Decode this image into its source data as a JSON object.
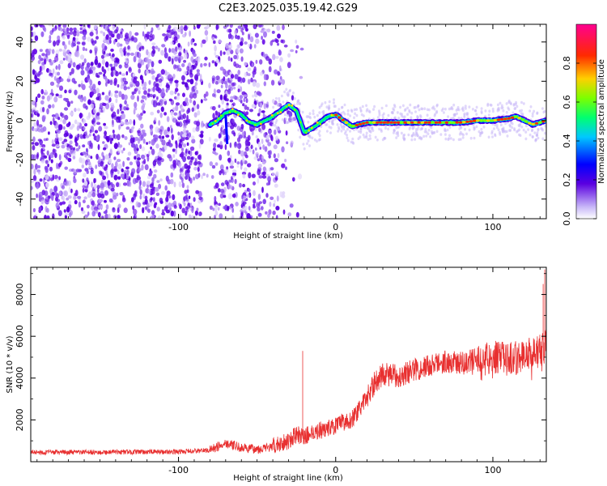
{
  "title": "C2E3.2025.035.19.42.G29",
  "chart_data": [
    {
      "type": "heatmap",
      "xlabel": "Height of straight line (km)",
      "ylabel": "Frequency (Hz)",
      "xlim": [
        -194,
        134
      ],
      "ylim": [
        -50,
        49
      ],
      "xticks": [
        -100,
        0,
        100
      ],
      "xtick_labels": [
        "-100",
        "0",
        "100"
      ],
      "yticks": [
        -40,
        -20,
        0,
        20,
        40
      ],
      "ytick_labels": [
        "-40",
        "-20",
        "0",
        "20",
        "40"
      ],
      "colorbar": {
        "label": "Normalized spectral amplitude",
        "range": [
          0,
          1
        ],
        "ticks": [
          0.0,
          0.2,
          0.4,
          0.6,
          0.8
        ],
        "tick_labels": [
          "0.0",
          "0.2",
          "0.4",
          "0.6",
          "0.8"
        ],
        "colormap": [
          "#ffffff",
          "#5a00e0",
          "#0000ff",
          "#00c8ff",
          "#00ff70",
          "#7cff00",
          "#ffd000",
          "#ff2a00",
          "#ff0090"
        ]
      },
      "noise_region_x": [
        -194,
        -40
      ],
      "ridge": {
        "x": [
          -80,
          -75,
          -70,
          -65,
          -60,
          -55,
          -50,
          -45,
          -40,
          -35,
          -30,
          -25,
          -20,
          -15,
          -10,
          -5,
          0,
          5,
          10,
          15,
          20,
          30,
          40,
          50,
          60,
          70,
          80,
          90,
          100,
          110,
          115,
          120,
          125,
          130,
          134
        ],
        "y": [
          -2,
          0,
          4,
          5,
          3,
          -1,
          -2,
          0,
          2,
          5,
          8,
          5,
          -6,
          -4,
          -1,
          2,
          3,
          0,
          -3,
          -2,
          -1,
          -1,
          -1,
          -1,
          -1,
          -1,
          -1,
          0,
          0,
          1,
          2,
          0,
          -2,
          -1,
          0
        ]
      }
    },
    {
      "type": "line",
      "xlabel": "Height of straight line (km)",
      "ylabel": "SNR (10 * v/v)",
      "xlim": [
        -194,
        134
      ],
      "ylim": [
        0,
        9300
      ],
      "xticks": [
        -100,
        0,
        100
      ],
      "xtick_labels": [
        "-100",
        "0",
        "100"
      ],
      "yticks": [
        2000,
        4000,
        6000,
        8000
      ],
      "ytick_labels": [
        "2000",
        "4000",
        "6000",
        "8000"
      ],
      "color": "#e83030",
      "trend": {
        "x": [
          -194,
          -150,
          -100,
          -80,
          -70,
          -60,
          -50,
          -40,
          -35,
          -30,
          -25,
          -20,
          -15,
          -10,
          -5,
          0,
          5,
          10,
          15,
          20,
          25,
          30,
          40,
          50,
          60,
          70,
          80,
          90,
          100,
          110,
          120,
          130,
          134
        ],
        "y": [
          450,
          450,
          480,
          550,
          900,
          650,
          600,
          700,
          900,
          1000,
          1300,
          1200,
          1400,
          1500,
          1600,
          1700,
          1900,
          2000,
          2500,
          3100,
          3800,
          4200,
          4100,
          4400,
          4600,
          4800,
          4700,
          4900,
          5000,
          4900,
          5100,
          5300,
          5600
        ]
      },
      "spikes": [
        {
          "x": -21,
          "y": 5300
        },
        {
          "x": 132,
          "y": 8500
        },
        {
          "x": 133,
          "y": 9200
        }
      ]
    }
  ]
}
